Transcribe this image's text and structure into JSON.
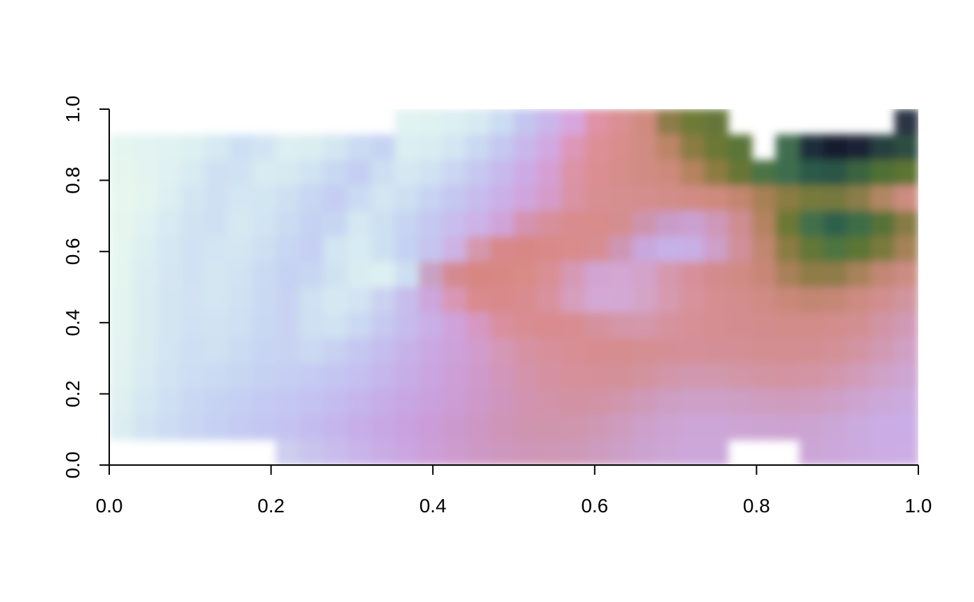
{
  "chart_data": {
    "type": "heatmap",
    "title": "",
    "xlabel": "",
    "ylabel": "",
    "xlim": [
      0,
      1
    ],
    "ylim": [
      0,
      1
    ],
    "x_ticks": [
      "0.0",
      "0.2",
      "0.4",
      "0.6",
      "0.8",
      "1.0"
    ],
    "y_ticks": [
      "0.0",
      "0.2",
      "0.4",
      "0.6",
      "0.8",
      "1.0"
    ],
    "grid": false,
    "legend": "none",
    "colors": {
      "low": "#e6f6ef",
      "mid_low": "#c6d6f2",
      "mid": "#c9aee6",
      "mid_high": "#d9858e",
      "high_green": "#6b7a33",
      "peak": "#1b1f33"
    },
    "raster_rows": [
      [
        null,
        null,
        null,
        null,
        null,
        null,
        null,
        null,
        null,
        null,
        null,
        null,
        "#e1f3f1",
        "#dff2f1",
        "#dceff1",
        "#d7eaf2",
        "#ccdcf2",
        "#c3c6f0",
        "#cab5ea",
        "#d8a6df",
        "#df92a6",
        "#d98f93",
        "#cf8b7f",
        "#8e7c48",
        "#6e7a34",
        "#66763a",
        null,
        null,
        null,
        null,
        null,
        null,
        null,
        "#2a3445"
      ],
      [
        "#e4f5f0",
        "#e2f3f1",
        "#e0f2f1",
        "#ddf0f1",
        "#d5eaf2",
        "#cce0f3",
        "#d2e4f3",
        "#ddeff1",
        "#daedf1",
        "#d3e7f2",
        "#cadcf2",
        "#c6d3f3",
        "#dbeef1",
        "#d9ecf1",
        "#d3e6f2",
        "#cbd8f2",
        "#c5c8f1",
        "#c9b7ea",
        "#d2a8e1",
        "#dd97b7",
        "#dd8f98",
        "#d88e8b",
        "#d08c82",
        "#bc8567",
        "#8a7b43",
        "#6c7834",
        "#5a7538",
        null,
        "#3f6d50",
        "#1d2e3b",
        "#161c2e",
        "#1b2436",
        "#27403f",
        "#2e4e42"
      ],
      [
        "#e6f6ef",
        "#e3f4f0",
        "#e0f1f1",
        "#d8ebf2",
        "#d0e0f3",
        "#cfe2f3",
        "#d8ebf2",
        "#d5e9f2",
        "#cfe3f2",
        "#c8d8f2",
        "#c4cdf3",
        "#cedff2",
        "#d5e8f2",
        "#d0e2f2",
        "#cad6f2",
        "#c6c8f1",
        "#c8b9eb",
        "#cdaae4",
        "#d59fd2",
        "#dc93a6",
        "#db8e91",
        "#d58e89",
        "#d08c84",
        "#cd8a7c",
        "#b5835f",
        "#8d7c43",
        "#687635",
        "#4b7345",
        "#3c6d4d",
        "#2a5a4a",
        "#2c5446",
        "#3a6440",
        "#4f7036",
        "#5d7433"
      ],
      [
        "#e7f7ef",
        "#e4f5f0",
        "#ddeff1",
        "#d4e5f2",
        "#cfe0f3",
        "#d3e6f3",
        "#d2e6f2",
        "#cde0f2",
        "#c8d6f2",
        "#c5cdf3",
        "#cbdaf2",
        "#d3e6f2",
        "#cde0f2",
        "#c8d3f2",
        "#c5c7f1",
        "#c7bcec",
        "#cbb0e7",
        "#d0a5dd",
        "#d59bc8",
        "#d993a4",
        "#d88f92",
        "#d68f8f",
        "#d48e8e",
        "#d38d89",
        "#d18b84",
        "#cf8a7d",
        "#c38670",
        "#a88055",
        "#8a7c43",
        "#777a3c",
        "#74793c",
        "#8a7d48",
        "#b18764",
        "#cd8c80"
      ],
      [
        "#e6f6ef",
        "#e0f2f1",
        "#d8eaf2",
        "#d1e2f3",
        "#cfe0f3",
        "#d6e9f2",
        "#d1e4f2",
        "#cbdcf2",
        "#c6d2f2",
        "#c8d5f2",
        "#d4e8f2",
        "#cde0f2",
        "#c7d4f2",
        "#c5c8f1",
        "#c8bdec",
        "#cdb2e7",
        "#d0a4d9",
        "#d593b0",
        "#d78f99",
        "#d98c8d",
        "#d88c8b",
        "#d58e90",
        "#ce94ad",
        "#c99bc7",
        "#caa0d0",
        "#cf98b9",
        "#cf8d92",
        "#b48361",
        "#6c7834",
        "#436f4b",
        "#2f604c",
        "#3c6d46",
        "#567237",
        "#867b44"
      ],
      [
        "#e5f5f0",
        "#ddeff1",
        "#d5e7f2",
        "#d0e1f3",
        "#d3e5f2",
        "#d3e6f2",
        "#cde0f2",
        "#c7d6f2",
        "#c6d0f3",
        "#d2e5f2",
        "#d7ebf2",
        "#cde0f2",
        "#c5d1f2",
        "#c6c5f0",
        "#cdb2e4",
        "#d597ac",
        "#d8888a",
        "#d88785",
        "#d98a88",
        "#d98c8c",
        "#d68e92",
        "#cf96b4",
        "#c9a7dc",
        "#c7b1e6",
        "#c9aee4",
        "#cd9fc9",
        "#d08f9a",
        "#c1876f",
        "#8b7c43",
        "#627737",
        "#4d7441",
        "#5c7535",
        "#7a7a3c",
        "#a68258"
      ],
      [
        "#e4f5f0",
        "#dcedf1",
        "#d5e6f2",
        "#d1e1f3",
        "#d4e6f2",
        "#d0e3f2",
        "#cadaf2",
        "#c6d2f2",
        "#c8d6f2",
        "#cfe2f2",
        "#d9edf1",
        "#ddf0f1",
        "#cddff2",
        "#c9a2c3",
        "#d58a91",
        "#d78682",
        "#d88884",
        "#d98b88",
        "#d98f94",
        "#d699b5",
        "#d2a4d1",
        "#d4a6d2",
        "#d4a3c9",
        "#d598ae",
        "#d6909b",
        "#d38b8c",
        "#d08b85",
        "#c88678",
        "#a9805a",
        "#8f7c47",
        "#8e7c48",
        "#a8825a",
        "#c18774",
        "#cc8c84"
      ],
      [
        "#e3f4f0",
        "#dbecf1",
        "#d4e5f2",
        "#d2e2f3",
        "#d3e6f2",
        "#cfe1f2",
        "#cad9f2",
        "#c8d3f2",
        "#cfe1f2",
        "#d5e8f2",
        "#d3e3f2",
        "#cbd2f1",
        "#c6bdec",
        "#cda6dc",
        "#d897b3",
        "#d98a8d",
        "#d9898a",
        "#d98c8f",
        "#d8929f",
        "#d69fbe",
        "#d4a8d4",
        "#d3a9d4",
        "#d4a4c6",
        "#d69aaf",
        "#d7929c",
        "#d68e91",
        "#d38d8c",
        "#cf8b84",
        "#c98879",
        "#c28672",
        "#c68776",
        "#cd8b82",
        "#d18e8f",
        "#d1959f"
      ],
      [
        "#e3f4f0",
        "#dbecf1",
        "#d4e5f2",
        "#d0e1f3",
        "#d1e3f2",
        "#cee0f2",
        "#c9d8f2",
        "#c8d3f2",
        "#cfe0f2",
        "#d1e3f2",
        "#cbd8f2",
        "#c6caf1",
        "#c6bcec",
        "#c9afe6",
        "#cfa3da",
        "#d698c3",
        "#d98f9f",
        "#d88d92",
        "#d98b8d",
        "#d88d91",
        "#d5919c",
        "#d496a8",
        "#d497ab",
        "#d5939f",
        "#d69096",
        "#d58e91",
        "#d48d8f",
        "#d38c8c",
        "#d28c89",
        "#d28c89",
        "#d28d8c",
        "#d28f93",
        "#d194a5",
        "#d09ab5"
      ],
      [
        "#e2f3f0",
        "#dbecf1",
        "#d3e4f2",
        "#cedff3",
        "#cfe1f2",
        "#cbdcf2",
        "#c7d5f2",
        "#c8d3f2",
        "#cbd9f2",
        "#c8d1f2",
        "#c5c7f1",
        "#c5bded",
        "#c7b2e8",
        "#caa8e2",
        "#cda1da",
        "#d19ccc",
        "#d597b6",
        "#d692a4",
        "#d7909b",
        "#d78e94",
        "#d78d90",
        "#d68d8f",
        "#d58e92",
        "#d48f96",
        "#d48f98",
        "#d38f97",
        "#d38f95",
        "#d38e93",
        "#d38e92",
        "#d38e93",
        "#d39097",
        "#d294a3",
        "#d19ab4",
        "#d0a0c4"
      ],
      [
        "#e1f2f1",
        "#d9eaf2",
        "#d2e3f2",
        "#cdddf3",
        "#cadaf2",
        "#c8d6f2",
        "#c6d2f2",
        "#c6cff3",
        "#c5cbf3",
        "#c4c6f1",
        "#c4bff0",
        "#c5b6eb",
        "#c7ade6",
        "#caa5e0",
        "#cd9fd7",
        "#cf9acb",
        "#d296b9",
        "#d493aa",
        "#d591a1",
        "#d5909b",
        "#d48f98",
        "#d39098",
        "#d2939f",
        "#d196a8",
        "#d198ad",
        "#d198ac",
        "#d196a7",
        "#d294a2",
        "#d393a0",
        "#d394a4",
        "#d297ad",
        "#d19cb9",
        "#cfa2c8",
        "#cea6d2"
      ],
      [
        "#dff0f1",
        "#d6e7f2",
        "#cfdff3",
        "#cad8f2",
        "#c7d3f2",
        "#c5cff3",
        "#c4cbf3",
        "#c4c7f2",
        "#c4c2f1",
        "#c4bcef",
        "#c5b5eb",
        "#c6ade7",
        "#c8a6e3",
        "#caa0dd",
        "#cc9cd5",
        "#ce98ca",
        "#cf95bd",
        "#d193b0",
        "#d292a7",
        "#d292a3",
        "#d193a5",
        "#d096ad",
        "#cf9ab8",
        "#ce9ec3",
        "#cea0c8",
        "#cea0c8",
        "#ce9fc4",
        "#cf9dbf",
        "#cf9cbd",
        "#cf9dbf",
        "#cea0c7",
        "#cda4d0",
        "#cca8d9",
        "#cbabdf"
      ],
      [
        "#dcedf1",
        "#d3e3f2",
        "#cddcf3",
        "#c9d5f2",
        "#c6d0f3",
        "#c5cbf3",
        "#c4c7f2",
        "#c4c2f1",
        "#c4bcef",
        "#c5b5ec",
        "#c6aee8",
        "#c7a7e4",
        "#c9a1df",
        "#cb9cd7",
        "#cc99ce",
        "#ce97c3",
        "#cf95b8",
        "#cf94b0",
        "#cf95ac",
        "#cf96ad",
        "#ce98b4",
        "#cd9cbe",
        "#cca0c9",
        "#cca4d2",
        "#cca6d7",
        "#cca6d7",
        "#cca5d4",
        "#cca4d1",
        "#cca3d0",
        "#cca4d2",
        "#cba7d8",
        "#cbaadf",
        "#cbace4",
        "#caade6"
      ],
      [
        null,
        null,
        null,
        null,
        null,
        null,
        null,
        "#cecdee",
        "#c9c4ed",
        "#c9bcec",
        "#c9b4e9",
        "#caace5",
        "#cba5e0",
        "#cc9fd8",
        "#cd9bcf",
        "#ce98c6",
        "#ce97bd",
        "#ce96b8",
        "#ce97b6",
        "#ce98b8",
        "#cd9bbe",
        "#cc9fc7",
        "#cca3d0",
        "#cca6d6",
        "#cca8da",
        "#cca8da",
        null,
        null,
        null,
        "#cca6d6",
        "#cca8da",
        "#ccaadf",
        "#ccace2",
        "#ccade4"
      ]
    ]
  }
}
